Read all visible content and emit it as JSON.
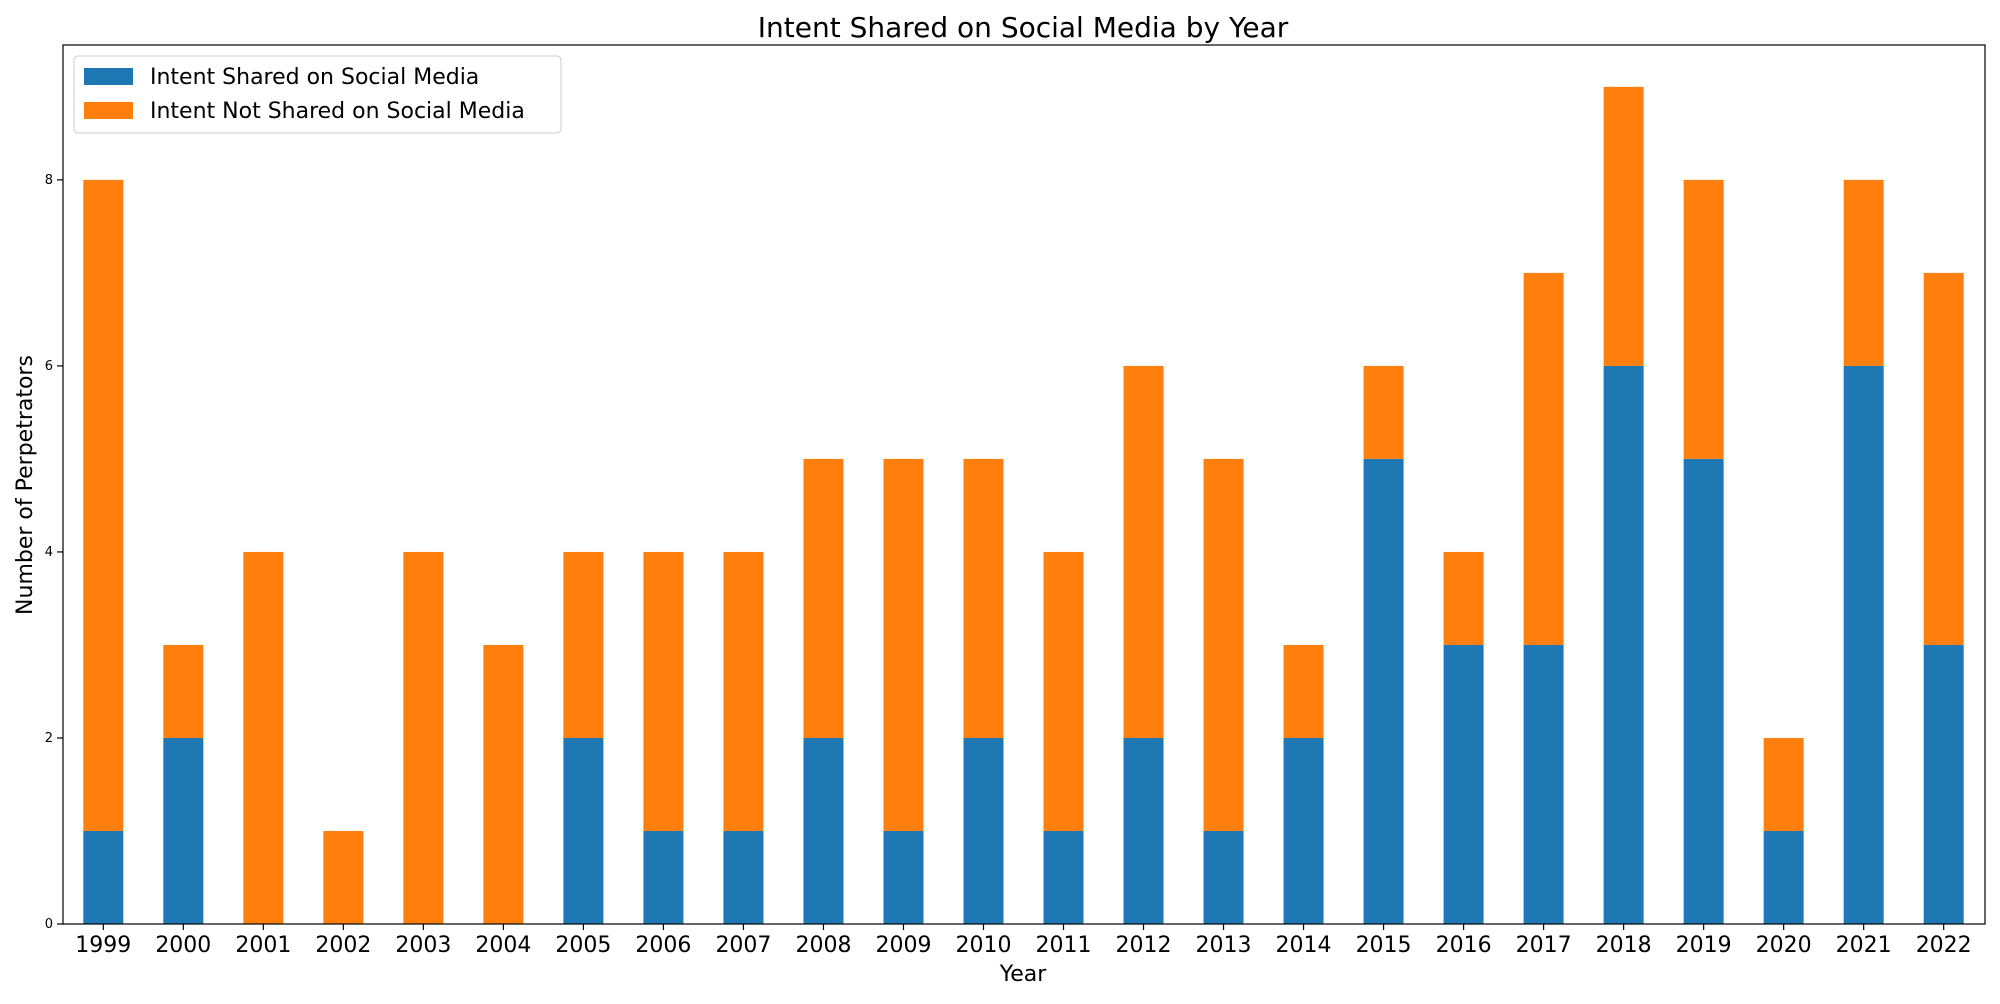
{
  "chart_data": {
    "type": "bar",
    "stacked": true,
    "title": "Intent Shared on Social Media by Year",
    "xlabel": "Year",
    "ylabel": "Number of Perpetrators",
    "categories": [
      "1999",
      "2000",
      "2001",
      "2002",
      "2003",
      "2004",
      "2005",
      "2006",
      "2007",
      "2008",
      "2009",
      "2010",
      "2011",
      "2012",
      "2013",
      "2014",
      "2015",
      "2016",
      "2017",
      "2018",
      "2019",
      "2020",
      "2021",
      "2022"
    ],
    "series": [
      {
        "name": "Intent Shared on Social Media",
        "color": "#1f77b4",
        "values": [
          1,
          2,
          0,
          0,
          0,
          0,
          2,
          1,
          1,
          2,
          1,
          2,
          1,
          2,
          1,
          2,
          5,
          3,
          3,
          6,
          5,
          1,
          6,
          3
        ]
      },
      {
        "name": "Intent Not Shared on Social Media",
        "color": "#ff7f0e",
        "values": [
          7,
          1,
          4,
          1,
          4,
          3,
          2,
          3,
          3,
          3,
          4,
          3,
          3,
          4,
          4,
          1,
          1,
          1,
          4,
          3,
          3,
          1,
          2,
          4
        ]
      }
    ],
    "yticks": [
      0,
      2,
      4,
      6,
      8
    ],
    "ylim": [
      0,
      9.45
    ],
    "grid": false,
    "legend_position": "top-left"
  }
}
